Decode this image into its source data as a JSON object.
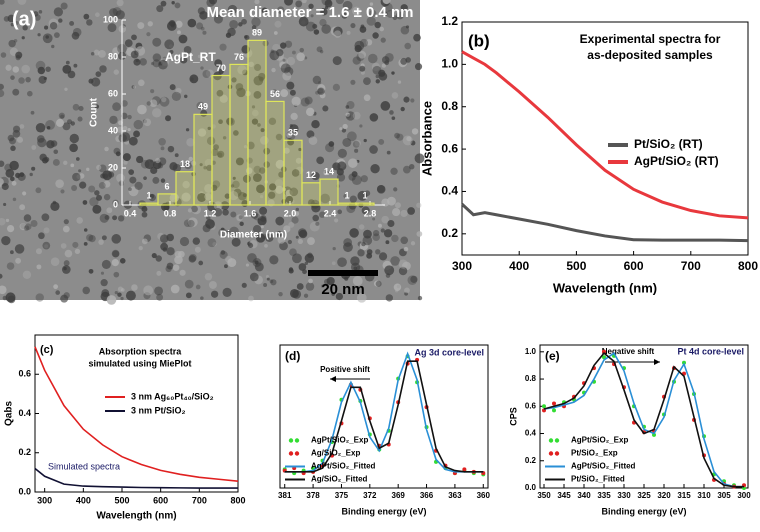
{
  "chart_data": [
    {
      "type": "histogram",
      "title": "Mean diameter = 1.6 ± 0.4 nm",
      "panel_label": "(a)",
      "annotation": "AgPt_RT",
      "scale_bar": "20 nm",
      "xlabel": "Diameter (nm)",
      "ylabel": "Count",
      "bins": [
        0.5,
        0.68,
        0.86,
        1.04,
        1.22,
        1.4,
        1.58,
        1.76,
        1.94,
        2.12,
        2.3,
        2.48,
        2.66,
        2.84
      ],
      "values": [
        1,
        6,
        18,
        49,
        70,
        76,
        89,
        56,
        35,
        12,
        14,
        1,
        1
      ],
      "color": "#dfe65a",
      "xlim": [
        0.32,
        2.95
      ],
      "ylim": [
        0,
        100
      ],
      "xticks": [
        0.4,
        0.8,
        1.2,
        1.6,
        {
          "value": 2,
          "label": "2.0"
        },
        2.4,
        2.8
      ],
      "yticks": [
        0,
        20,
        40,
        60,
        80,
        100
      ],
      "bar_labels": true
    },
    {
      "type": "line",
      "panel_label": "(b)",
      "title": [
        "Experimental spectra for",
        "as-deposited samples"
      ],
      "xlabel": "Wavelength (nm)",
      "ylabel": "Absorbance",
      "x": [
        300,
        320,
        340,
        360,
        400,
        450,
        500,
        550,
        600,
        650,
        700,
        750,
        800
      ],
      "series": [
        {
          "name": "Pt/SiO₂ (RT)",
          "color": "#555555",
          "values": [
            0.34,
            0.29,
            0.3,
            0.29,
            0.27,
            0.245,
            0.215,
            0.19,
            0.172,
            0.17,
            0.17,
            0.17,
            0.168
          ]
        },
        {
          "name": "AgPt/SiO₂ (RT)",
          "color": "#e8383d",
          "values": [
            1.06,
            1.03,
            1.0,
            0.96,
            0.87,
            0.75,
            0.62,
            0.5,
            0.41,
            0.35,
            0.31,
            0.285,
            0.275
          ]
        }
      ],
      "xlim": [
        300,
        800
      ],
      "ylim": [
        0.1,
        1.2
      ],
      "xticks": [
        300,
        400,
        500,
        600,
        700,
        800
      ],
      "yticks": [
        0.2,
        0.4,
        0.6,
        0.8,
        {
          "value": 1,
          "label": "1.0"
        },
        1.2
      ],
      "legend": "center right"
    },
    {
      "type": "line",
      "panel_label": "(c)",
      "title": [
        "Absorption spectra",
        "simulated using MiePlot"
      ],
      "annotation": "Simulated spectra",
      "xlabel": "Wavelength (nm)",
      "ylabel": "Qabs",
      "x": [
        275,
        300,
        350,
        400,
        450,
        500,
        550,
        600,
        650,
        700,
        750,
        800
      ],
      "series": [
        {
          "name": "3 nm Ag₆₀Pt₄₀/SiO₂",
          "color": "#e02020",
          "values": [
            0.74,
            0.62,
            0.44,
            0.32,
            0.24,
            0.18,
            0.14,
            0.11,
            0.09,
            0.075,
            0.065,
            0.055
          ]
        },
        {
          "name": "3 nm Pt/SiO₂",
          "color": "#111133",
          "values": [
            0.12,
            0.08,
            0.04,
            0.03,
            0.027,
            0.025,
            0.023,
            0.022,
            0.021,
            0.02,
            0.02,
            0.02
          ]
        }
      ],
      "xlim": [
        275,
        800
      ],
      "ylim": [
        0,
        0.8
      ],
      "xticks": [
        300,
        400,
        500,
        600,
        700,
        800
      ],
      "yticks": [
        {
          "value": 0,
          "label": "0.0"
        },
        0.2,
        0.4,
        0.6
      ],
      "legend": "upper right"
    },
    {
      "type": "line",
      "panel_label": "(d)",
      "title": "Ag 3d core-level",
      "annotation": "Positive shift",
      "xlabel": "Binding energy (eV)",
      "x": [
        381,
        380,
        379,
        378,
        377,
        376,
        375,
        374,
        373,
        372,
        371,
        370,
        369,
        368,
        367,
        366,
        365,
        364,
        363,
        362,
        361,
        360
      ],
      "series": [
        {
          "name": "AgPt/SiO₂_Exp",
          "color": "#33dd33",
          "mode": "markers",
          "values": [
            0.15,
            0.12,
            0.14,
            0.16,
            0.22,
            0.37,
            0.71,
            0.83,
            0.7,
            0.43,
            0.31,
            0.46,
            0.88,
            1.06,
            0.85,
            0.49,
            0.21,
            0.16,
            0.12,
            0.14,
            0.12,
            0.11
          ]
        },
        {
          "name": "Ag/SiO₂_Exp",
          "color": "#e02020",
          "mode": "markers",
          "values": [
            0.14,
            0.16,
            0.12,
            0.13,
            0.18,
            0.26,
            0.52,
            0.83,
            0.79,
            0.56,
            0.34,
            0.35,
            0.69,
            1.0,
            1.03,
            0.65,
            0.3,
            0.18,
            0.12,
            0.15,
            0.13,
            0.12
          ]
        },
        {
          "name": "AgPt/SiO₂_Fitted",
          "color": "#2a8fd6",
          "values": [
            0.13,
            0.13,
            0.13,
            0.14,
            0.2,
            0.39,
            0.69,
            0.85,
            0.69,
            0.41,
            0.3,
            0.48,
            0.87,
            1.08,
            0.87,
            0.47,
            0.23,
            0.15,
            0.13,
            0.13,
            0.13,
            0.13
          ]
        },
        {
          "name": "Ag/SiO₂_Fitted",
          "color": "#111111",
          "values": [
            0.13,
            0.13,
            0.13,
            0.13,
            0.16,
            0.28,
            0.54,
            0.81,
            0.81,
            0.54,
            0.32,
            0.36,
            0.67,
            1.02,
            1.02,
            0.67,
            0.32,
            0.17,
            0.14,
            0.13,
            0.13,
            0.13
          ]
        }
      ],
      "xlim": [
        381.5,
        359.5
      ],
      "ylim": [
        0,
        1.15
      ],
      "xticks": [
        381,
        378,
        375,
        372,
        369,
        366,
        363,
        360
      ],
      "legend": "lower left"
    },
    {
      "type": "line",
      "panel_label": "(e)",
      "title": "Pt 4d core-level",
      "annotation": "Negative shift",
      "xlabel": "Binding energy (eV)",
      "ylabel": "CPS",
      "x": [
        350,
        347.5,
        345,
        342.5,
        340,
        337.5,
        335,
        332.5,
        330,
        327.5,
        325,
        322.5,
        320,
        317.5,
        315,
        312.5,
        310,
        307.5,
        305,
        302.5,
        300
      ],
      "series": [
        {
          "name": "AgPt/SiO₂_Exp",
          "color": "#33dd33",
          "mode": "markers",
          "values": [
            0.6,
            0.57,
            0.63,
            0.65,
            0.7,
            0.78,
            0.96,
            0.97,
            0.88,
            0.6,
            0.45,
            0.39,
            0.54,
            0.78,
            0.92,
            0.69,
            0.38,
            0.1,
            0.05,
            0.02,
            0.0
          ]
        },
        {
          "name": "Pt/SiO₂_Exp",
          "color": "#e02020",
          "mode": "markers",
          "values": [
            0.57,
            0.62,
            0.6,
            0.67,
            0.77,
            0.88,
            1.0,
            0.91,
            0.74,
            0.48,
            0.41,
            0.42,
            0.67,
            0.88,
            0.84,
            0.5,
            0.24,
            0.06,
            0.03,
            0.01,
            0.02
          ]
        },
        {
          "name": "AgPt/SiO₂_Fitted",
          "color": "#2a8fd6",
          "values": [
            0.58,
            0.59,
            0.61,
            0.63,
            0.68,
            0.8,
            0.94,
            0.99,
            0.86,
            0.62,
            0.43,
            0.4,
            0.52,
            0.79,
            0.91,
            0.7,
            0.36,
            0.12,
            0.03,
            0.01,
            0.01
          ]
        },
        {
          "name": "Pt/SiO₂_Fitted",
          "color": "#111111",
          "values": [
            0.58,
            0.6,
            0.62,
            0.66,
            0.75,
            0.9,
            0.99,
            0.93,
            0.72,
            0.5,
            0.4,
            0.43,
            0.65,
            0.89,
            0.82,
            0.52,
            0.22,
            0.07,
            0.02,
            0.01,
            0.01
          ]
        }
      ],
      "xlim": [
        351,
        299
      ],
      "ylim": [
        0,
        1.05
      ],
      "xticks": [
        350,
        345,
        340,
        335,
        330,
        325,
        320,
        315,
        310,
        305,
        300
      ],
      "yticks": [
        {
          "value": 0,
          "label": "0.0"
        },
        0.2,
        0.4,
        0.6,
        0.8,
        {
          "value": 1,
          "label": "1.0"
        }
      ],
      "legend": "lower left"
    }
  ]
}
